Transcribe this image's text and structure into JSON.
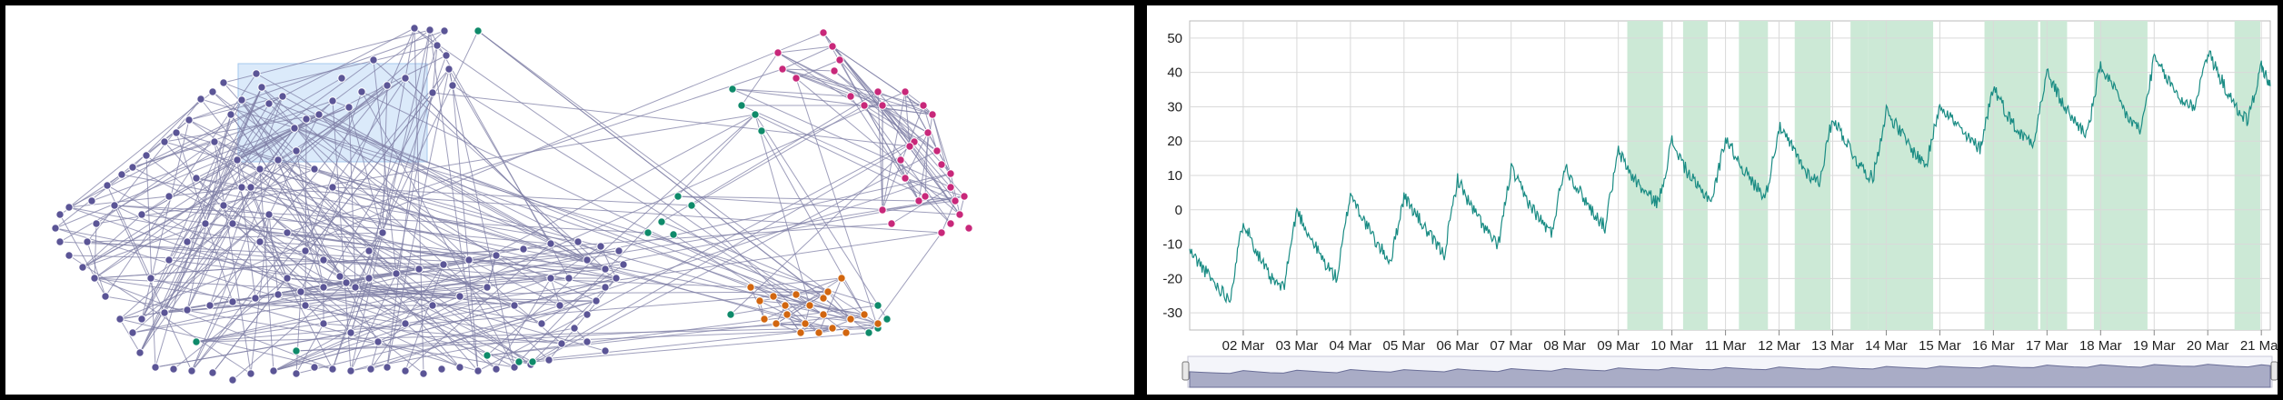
{
  "network": {
    "colors": {
      "purple": "#5b5596",
      "magenta": "#c8287a",
      "green": "#0f8a6a",
      "orange": "#d2660f",
      "edge": "#7f7fa6",
      "selection": "#cfe3f8"
    }
  },
  "chart_data": {
    "type": "line",
    "title": "",
    "xlabel": "",
    "ylabel": "",
    "ylim": [
      -35,
      55
    ],
    "y_ticks": [
      -30,
      -20,
      -10,
      0,
      10,
      20,
      30,
      40,
      50
    ],
    "x_range": [
      "2025-03-01",
      "2025-03-21"
    ],
    "x_ticks": [
      "02 Mar",
      "03 Mar",
      "04 Mar",
      "05 Mar",
      "06 Mar",
      "07 Mar",
      "08 Mar",
      "09 Mar",
      "10 Mar",
      "11 Mar",
      "12 Mar",
      "13 Mar",
      "14 Mar",
      "15 Mar",
      "16 Mar",
      "17 Mar",
      "18 Mar",
      "19 Mar",
      "20 Mar",
      "21 Mar"
    ],
    "grid": true,
    "line_color": "#1a8c84",
    "band_color": "#cce9d6",
    "shaded_ranges": [
      [
        "2025-03-09 04:00",
        "2025-03-09 20:00"
      ],
      [
        "2025-03-10 05:00",
        "2025-03-10 16:00"
      ],
      [
        "2025-03-11 06:00",
        "2025-03-11 19:00"
      ],
      [
        "2025-03-12 07:00",
        "2025-03-12 23:00"
      ],
      [
        "2025-03-13 08:00",
        "2025-03-13 16:00"
      ],
      [
        "2025-03-13 16:00",
        "2025-03-14 21:00"
      ],
      [
        "2025-03-15 20:00",
        "2025-03-16 20:00"
      ],
      [
        "2025-03-16 21:00",
        "2025-03-17 09:00"
      ],
      [
        "2025-03-17 21:00",
        "2025-03-18 21:00"
      ],
      [
        "2025-03-20 12:00",
        "2025-03-20 23:30"
      ]
    ],
    "series": [
      {
        "values": [
          [
            "2025-03-01 00:00",
            -12
          ],
          [
            "2025-03-01 06:00",
            -17
          ],
          [
            "2025-03-01 12:00",
            -22
          ],
          [
            "2025-03-01 18:00",
            -26
          ],
          [
            "2025-03-02 00:00",
            -3
          ],
          [
            "2025-03-02 06:00",
            -12
          ],
          [
            "2025-03-02 12:00",
            -20
          ],
          [
            "2025-03-02 18:00",
            -23
          ],
          [
            "2025-03-03 00:00",
            0
          ],
          [
            "2025-03-03 06:00",
            -8
          ],
          [
            "2025-03-03 12:00",
            -15
          ],
          [
            "2025-03-03 18:00",
            -20
          ],
          [
            "2025-03-04 00:00",
            5
          ],
          [
            "2025-03-04 06:00",
            -3
          ],
          [
            "2025-03-04 12:00",
            -10
          ],
          [
            "2025-03-04 18:00",
            -15
          ],
          [
            "2025-03-05 00:00",
            4
          ],
          [
            "2025-03-05 06:00",
            -2
          ],
          [
            "2025-03-05 12:00",
            -8
          ],
          [
            "2025-03-05 18:00",
            -13
          ],
          [
            "2025-03-06 00:00",
            9
          ],
          [
            "2025-03-06 06:00",
            1
          ],
          [
            "2025-03-06 12:00",
            -5
          ],
          [
            "2025-03-06 18:00",
            -11
          ],
          [
            "2025-03-07 00:00",
            12
          ],
          [
            "2025-03-07 06:00",
            4
          ],
          [
            "2025-03-07 12:00",
            -2
          ],
          [
            "2025-03-07 18:00",
            -7
          ],
          [
            "2025-03-08 00:00",
            13
          ],
          [
            "2025-03-08 06:00",
            6
          ],
          [
            "2025-03-08 12:00",
            0
          ],
          [
            "2025-03-08 18:00",
            -5
          ],
          [
            "2025-03-09 00:00",
            17
          ],
          [
            "2025-03-09 06:00",
            10
          ],
          [
            "2025-03-09 12:00",
            5
          ],
          [
            "2025-03-09 18:00",
            2
          ],
          [
            "2025-03-10 00:00",
            20
          ],
          [
            "2025-03-10 06:00",
            12
          ],
          [
            "2025-03-10 12:00",
            6
          ],
          [
            "2025-03-10 18:00",
            3
          ],
          [
            "2025-03-11 00:00",
            21
          ],
          [
            "2025-03-11 06:00",
            14
          ],
          [
            "2025-03-11 12:00",
            8
          ],
          [
            "2025-03-11 18:00",
            4
          ],
          [
            "2025-03-12 00:00",
            24
          ],
          [
            "2025-03-12 06:00",
            18
          ],
          [
            "2025-03-12 12:00",
            11
          ],
          [
            "2025-03-12 18:00",
            8
          ],
          [
            "2025-03-13 00:00",
            27
          ],
          [
            "2025-03-13 06:00",
            20
          ],
          [
            "2025-03-13 12:00",
            13
          ],
          [
            "2025-03-13 18:00",
            9
          ],
          [
            "2025-03-14 00:00",
            29
          ],
          [
            "2025-03-14 06:00",
            23
          ],
          [
            "2025-03-14 12:00",
            17
          ],
          [
            "2025-03-14 18:00",
            13
          ],
          [
            "2025-03-15 00:00",
            31
          ],
          [
            "2025-03-15 06:00",
            26
          ],
          [
            "2025-03-15 12:00",
            21
          ],
          [
            "2025-03-15 18:00",
            18
          ],
          [
            "2025-03-16 00:00",
            36
          ],
          [
            "2025-03-16 06:00",
            28
          ],
          [
            "2025-03-16 12:00",
            22
          ],
          [
            "2025-03-16 18:00",
            20
          ],
          [
            "2025-03-17 00:00",
            40
          ],
          [
            "2025-03-17 06:00",
            32
          ],
          [
            "2025-03-17 12:00",
            26
          ],
          [
            "2025-03-17 18:00",
            22
          ],
          [
            "2025-03-18 00:00",
            42
          ],
          [
            "2025-03-18 06:00",
            35
          ],
          [
            "2025-03-18 12:00",
            27
          ],
          [
            "2025-03-18 18:00",
            23
          ],
          [
            "2025-03-19 00:00",
            44
          ],
          [
            "2025-03-19 06:00",
            38
          ],
          [
            "2025-03-19 12:00",
            32
          ],
          [
            "2025-03-19 18:00",
            30
          ],
          [
            "2025-03-20 00:00",
            46
          ],
          [
            "2025-03-20 06:00",
            38
          ],
          [
            "2025-03-20 12:00",
            30
          ],
          [
            "2025-03-20 18:00",
            26
          ],
          [
            "2025-03-21 00:00",
            42
          ],
          [
            "2025-03-21 04:00",
            36
          ]
        ]
      }
    ]
  }
}
